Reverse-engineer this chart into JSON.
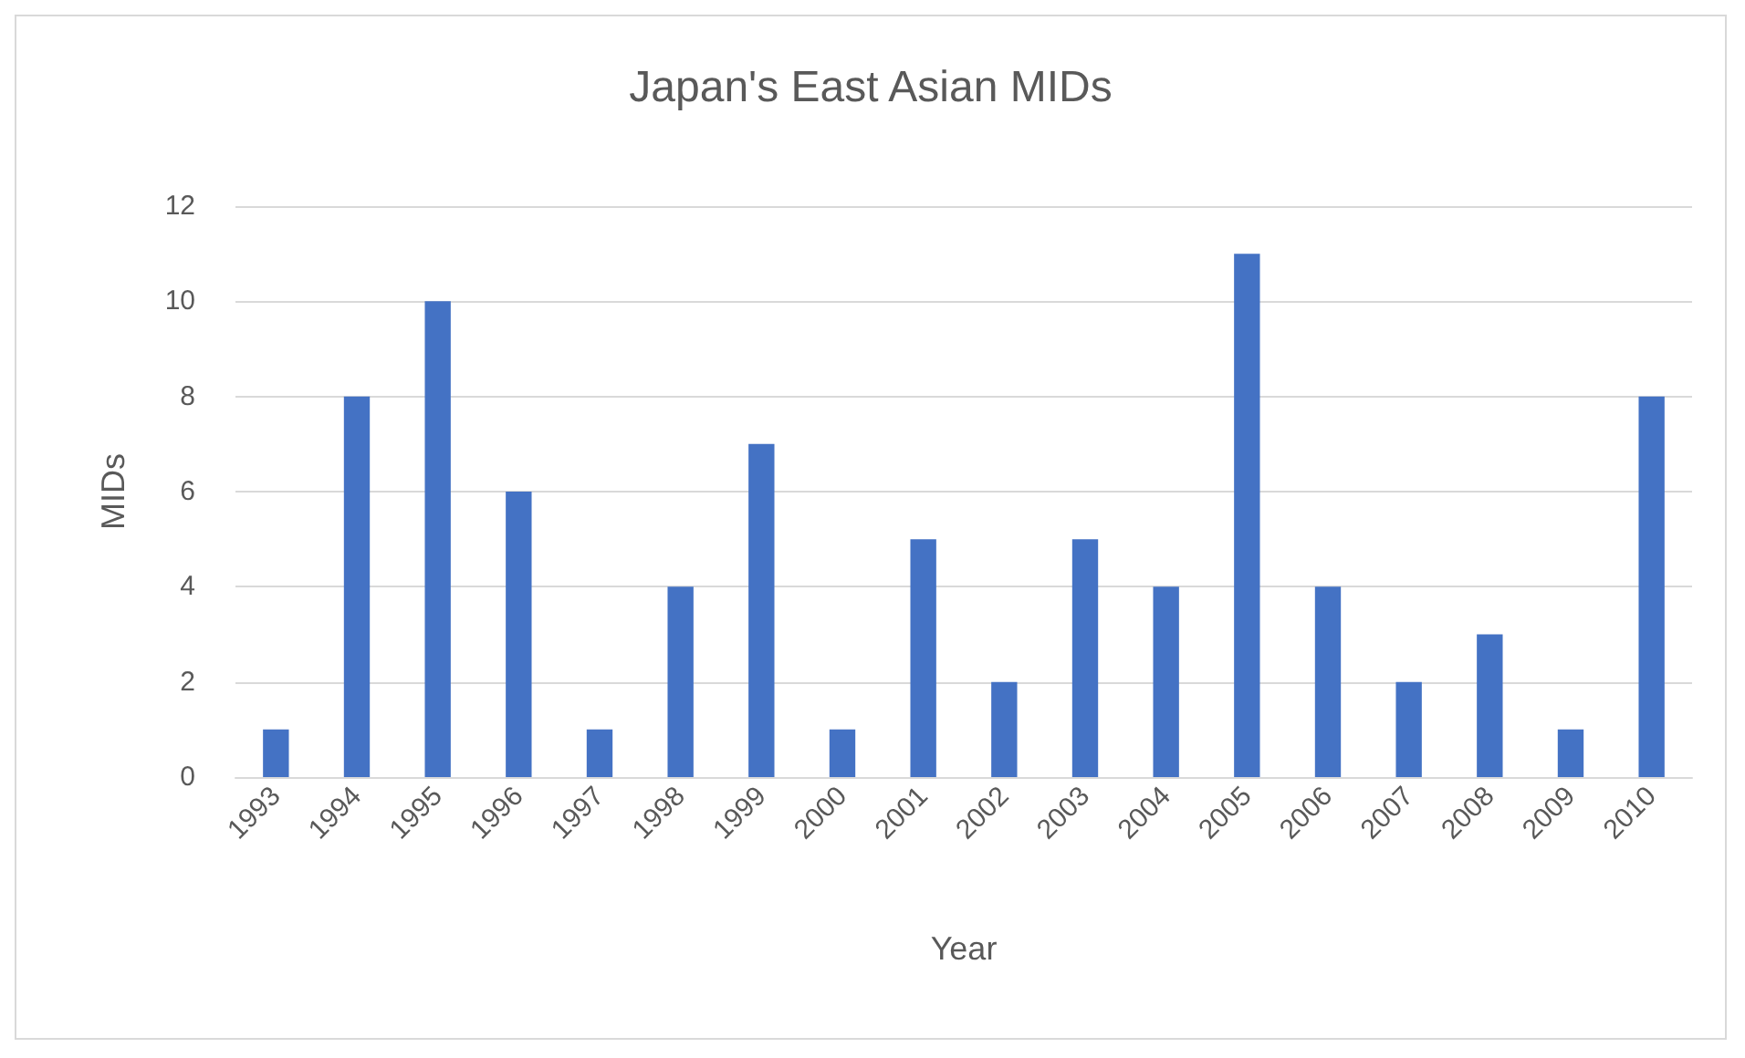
{
  "chart_data": {
    "type": "bar",
    "title": "Japan's East Asian MIDs",
    "xlabel": "Year",
    "ylabel": "MIDs",
    "categories": [
      "1993",
      "1994",
      "1995",
      "1996",
      "1997",
      "1998",
      "1999",
      "2000",
      "2001",
      "2002",
      "2003",
      "2004",
      "2005",
      "2006",
      "2007",
      "2008",
      "2009",
      "2010"
    ],
    "values": [
      1,
      8,
      10,
      6,
      1,
      4,
      7,
      1,
      5,
      2,
      5,
      4,
      11,
      4,
      2,
      3,
      1,
      8
    ],
    "color": "#4472c4",
    "ylim": [
      0,
      12
    ],
    "yticks": [
      0,
      2,
      4,
      6,
      8,
      10,
      12
    ],
    "grid": "y"
  }
}
